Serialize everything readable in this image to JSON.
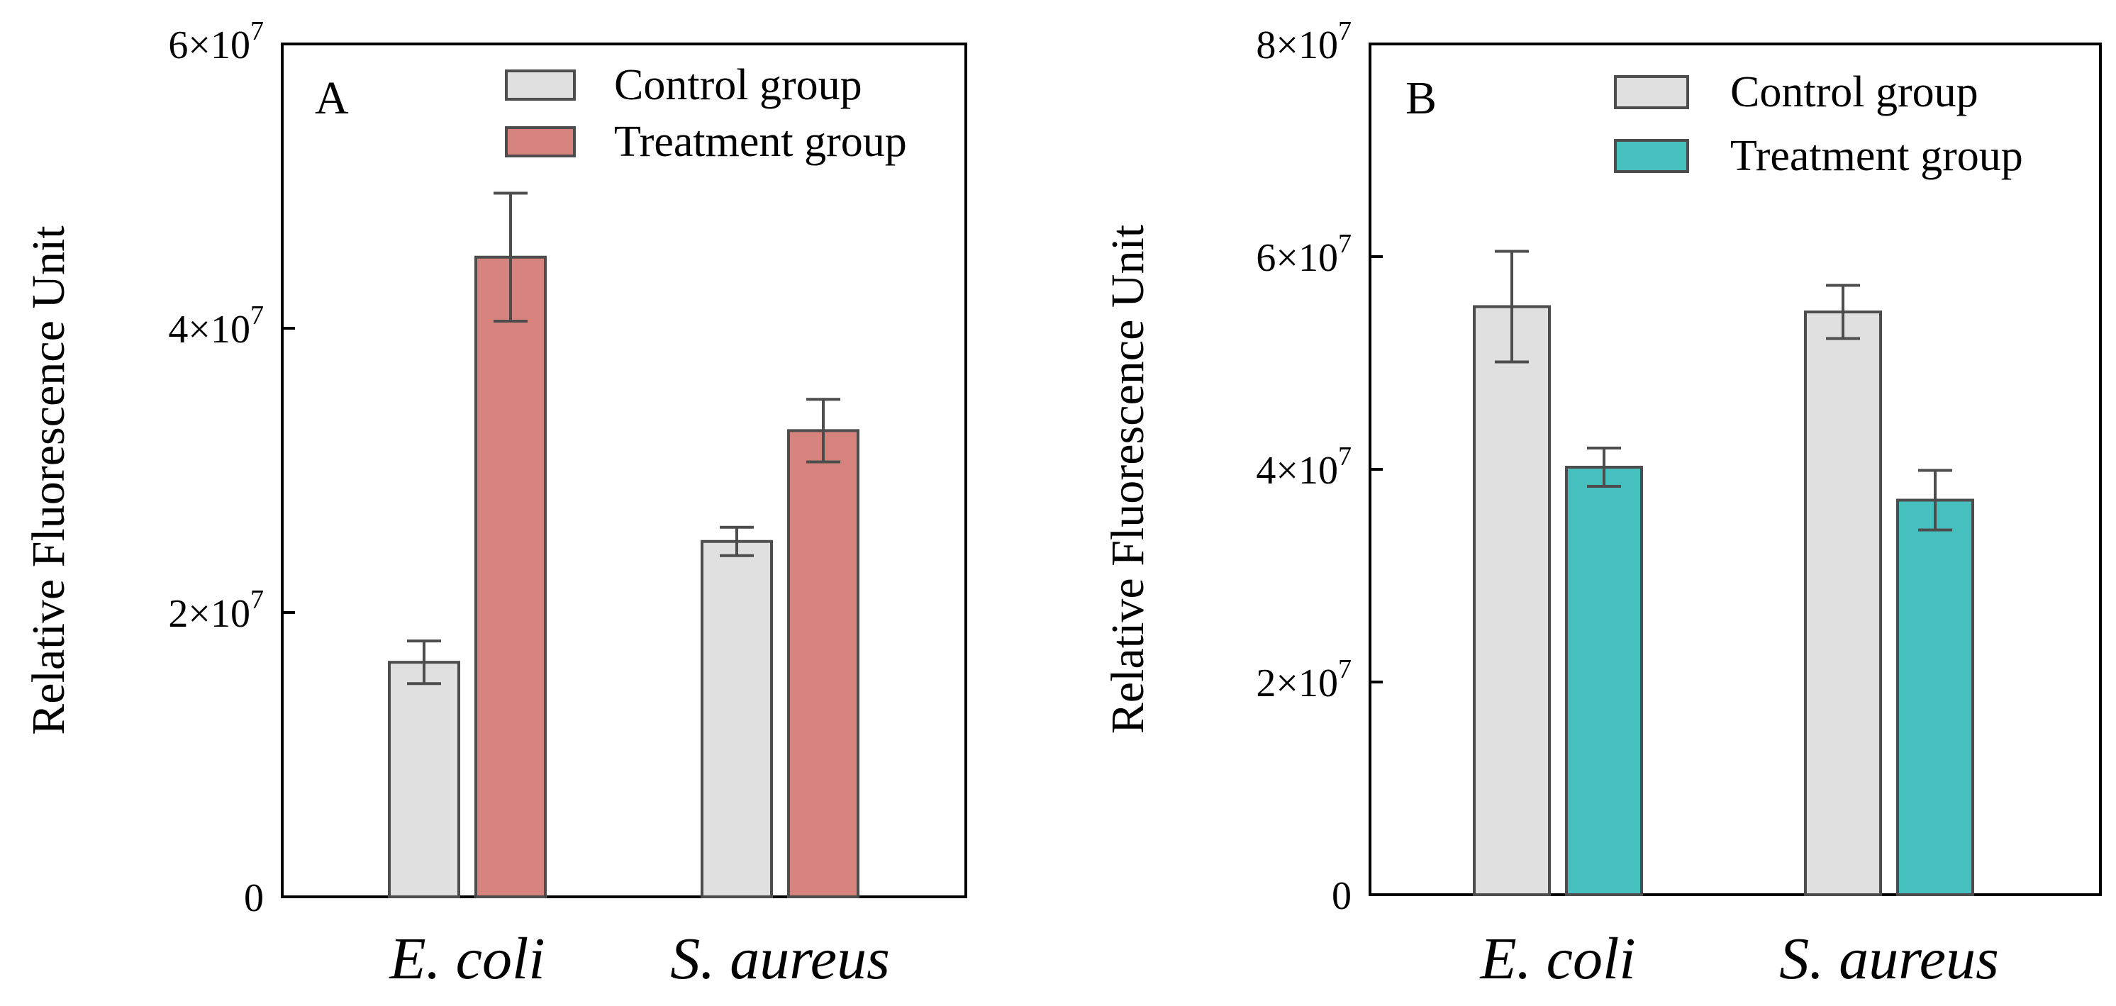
{
  "chart_data": [
    {
      "type": "bar",
      "panel_label": "A",
      "ylabel": "Relative Fluorescence Unit",
      "categories": [
        "E. coli",
        "S. aureus"
      ],
      "ylim": [
        0,
        60000000
      ],
      "yticks": [
        {
          "value": 0,
          "label": "0"
        },
        {
          "value": 20000000,
          "label": "2×10",
          "exp": "7"
        },
        {
          "value": 40000000,
          "label": "4×10",
          "exp": "7"
        },
        {
          "value": 60000000,
          "label": "6×10",
          "exp": "7"
        }
      ],
      "legend_position": "top-right",
      "series": [
        {
          "name": "Control group",
          "color": "#e0e0e0",
          "values": [
            16500000,
            25000000
          ],
          "errors": [
            1500000,
            1000000
          ]
        },
        {
          "name": "Treatment group",
          "color": "#d6837d",
          "values": [
            45000000,
            32800000
          ],
          "errors": [
            4500000,
            2200000
          ]
        }
      ]
    },
    {
      "type": "bar",
      "panel_label": "B",
      "ylabel": "Relative Fluorescence Unit",
      "categories": [
        "E. coli",
        "S. aureus"
      ],
      "ylim": [
        0,
        80000000
      ],
      "yticks": [
        {
          "value": 0,
          "label": "0"
        },
        {
          "value": 20000000,
          "label": "2×10",
          "exp": "7"
        },
        {
          "value": 40000000,
          "label": "4×10",
          "exp": "7"
        },
        {
          "value": 60000000,
          "label": "6×10",
          "exp": "7"
        },
        {
          "value": 80000000,
          "label": "8×10",
          "exp": "7"
        }
      ],
      "legend_position": "top-right",
      "series": [
        {
          "name": "Control group",
          "color": "#e0e0e0",
          "values": [
            55300000,
            54800000
          ],
          "errors": [
            5200000,
            2500000
          ]
        },
        {
          "name": "Treatment group",
          "color": "#45c0bf",
          "values": [
            40200000,
            37100000
          ],
          "errors": [
            1800000,
            2800000
          ]
        }
      ]
    }
  ]
}
